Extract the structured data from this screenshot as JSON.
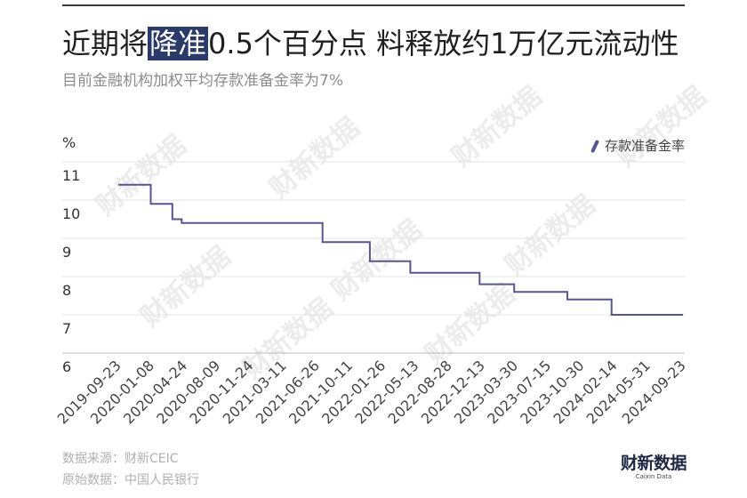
{
  "title": {
    "before": "近期将",
    "highlight": "降准",
    "after": "0.5个百分点 料释放约1万亿元流动性"
  },
  "subtitle": "目前金融机构加权平均存款准备金率为7%",
  "colors": {
    "line": "#57568e",
    "highlight_bg": "#2c3a6a",
    "highlight_text": "#ffffff",
    "grid": "#e4e4e4",
    "axis": "#bdbdbd",
    "tick_text": "#444444",
    "watermark": "#ececec",
    "logo": "#1e2744"
  },
  "chart_data": {
    "type": "line",
    "interpolation": "step-after",
    "ylabel": "%",
    "ylim": [
      6,
      11
    ],
    "yticks": [
      11,
      10,
      9,
      8,
      7,
      6
    ],
    "xlim": [
      "2019-09-23",
      "2024-09-23"
    ],
    "xticks": [
      "2019-09-23",
      "2020-01-08",
      "2020-04-24",
      "2020-08-09",
      "2020-11-24",
      "2021-03-11",
      "2021-06-26",
      "2021-10-11",
      "2022-01-26",
      "2022-05-13",
      "2022-08-28",
      "2022-12-13",
      "2023-03-30",
      "2023-07-15",
      "2023-10-30",
      "2024-02-14",
      "2024-05-31",
      "2024-09-23"
    ],
    "grid": true,
    "legend": "top-right",
    "series": [
      {
        "name": "存款准备金率",
        "x": [
          "2019-09-23",
          "2020-01-06",
          "2020-03-16",
          "2020-04-15",
          "2021-07-15",
          "2021-12-15",
          "2022-04-25",
          "2022-12-05",
          "2023-03-27",
          "2023-09-15",
          "2024-02-05",
          "2024-09-23"
        ],
        "y": [
          10.4,
          9.9,
          9.5,
          9.4,
          8.9,
          8.4,
          8.1,
          7.8,
          7.6,
          7.4,
          7.0,
          7.0
        ]
      }
    ]
  },
  "footer": {
    "source": "数据来源：财新CEIC",
    "raw": "原始数据：中国人民银行"
  },
  "logo": {
    "text": "财新数据",
    "sub": "Caixin Data"
  },
  "watermark": "财新数据"
}
